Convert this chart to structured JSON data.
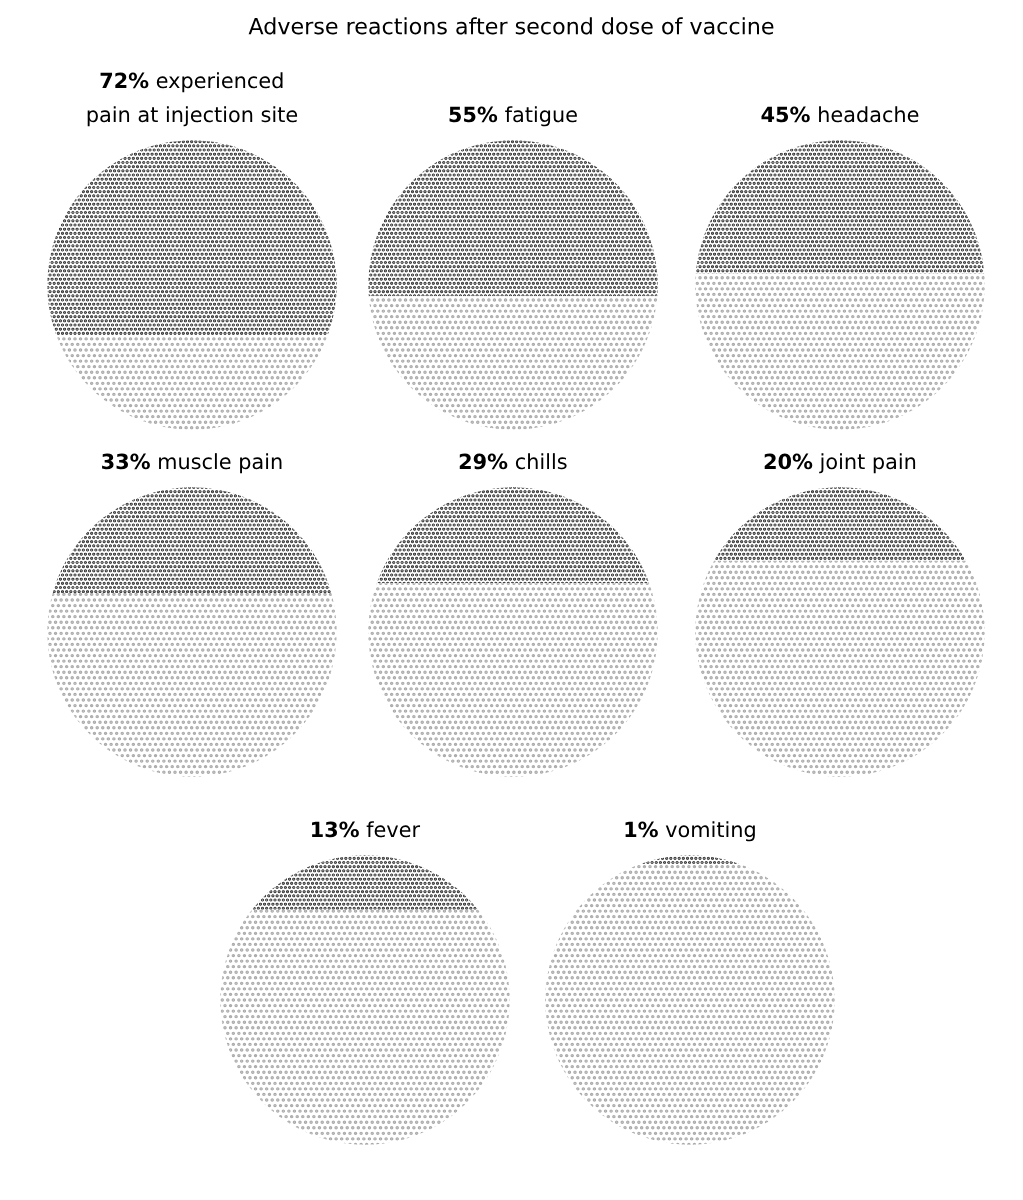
{
  "chart_data": [
    {
      "type": "other",
      "title": "Adverse reactions after second dose of vaccine"
    },
    {
      "type": "other",
      "categories": [
        "experienced pain at injection site"
      ],
      "values": [
        72
      ],
      "value_labels": [
        "72%"
      ],
      "color": "#1a1a1a"
    },
    {
      "type": "other",
      "categories": [
        "fatigue"
      ],
      "values": [
        55
      ],
      "value_labels": [
        "55%"
      ],
      "color": "#1a1a1a"
    },
    {
      "type": "other",
      "categories": [
        "headache"
      ],
      "values": [
        45
      ],
      "value_labels": [
        "45%"
      ],
      "color": "#1a1a1a"
    },
    {
      "type": "other",
      "categories": [
        "muscle pain"
      ],
      "values": [
        33
      ],
      "value_labels": [
        "33%"
      ],
      "color": "#1a1a1a"
    },
    {
      "type": "other",
      "categories": [
        "chills"
      ],
      "values": [
        29
      ],
      "value_labels": [
        "29%"
      ],
      "color": "#1a1a1a"
    },
    {
      "type": "other",
      "categories": [
        "joint pain"
      ],
      "values": [
        20
      ],
      "value_labels": [
        "20%"
      ],
      "color": "#1a1a1a"
    },
    {
      "type": "other",
      "categories": [
        "fever"
      ],
      "values": [
        13
      ],
      "value_labels": [
        "13%"
      ],
      "color": "#1a1a1a"
    },
    {
      "type": "other",
      "categories": [
        "vomiting"
      ],
      "values": [
        1
      ],
      "value_labels": [
        "1%"
      ],
      "color": "#1a1a1a"
    }
  ]
}
